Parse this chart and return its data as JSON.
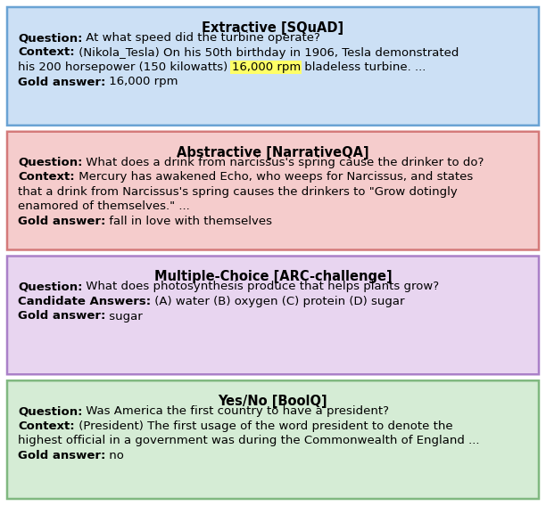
{
  "boxes": [
    {
      "title": "Extractive [SQuAD]",
      "bg_color": "#cce0f5",
      "border_color": "#6aa3d4",
      "lines": [
        [
          {
            "text": "Question:",
            "bold": true
          },
          {
            "text": " At what speed did the turbine operate?",
            "bold": false
          }
        ],
        [
          {
            "text": "Context:",
            "bold": true
          },
          {
            "text": " (Nikola_Tesla) On his 50th birthday in 1906, Tesla demonstrated",
            "bold": false
          }
        ],
        [
          {
            "text": "his 200 horsepower (150 kilowatts) ",
            "bold": false
          },
          {
            "text": "16,000 rpm",
            "bold": false,
            "highlight": "#ffff66"
          },
          {
            "text": " bladeless turbine. ...",
            "bold": false
          }
        ],
        [
          {
            "text": "Gold answer:",
            "bold": true
          },
          {
            "text": " 16,000 rpm",
            "bold": false
          }
        ]
      ]
    },
    {
      "title": "Abstractive [NarrativeQA]",
      "bg_color": "#f5cccc",
      "border_color": "#d47a7a",
      "lines": [
        [
          {
            "text": "Question:",
            "bold": true
          },
          {
            "text": " What does a drink from narcissus's spring cause the drinker to do?",
            "bold": false
          }
        ],
        [
          {
            "text": "Context:",
            "bold": true
          },
          {
            "text": " Mercury has awakened Echo, who weeps for Narcissus, and states",
            "bold": false
          }
        ],
        [
          {
            "text": "that a drink from Narcissus's spring causes the drinkers to \"Grow dotingly",
            "bold": false
          }
        ],
        [
          {
            "text": "enamored of themselves.\" ...",
            "bold": false
          }
        ],
        [
          {
            "text": "Gold answer:",
            "bold": true
          },
          {
            "text": " fall in love with themselves",
            "bold": false
          }
        ]
      ]
    },
    {
      "title": "Multiple-Choice [ARC-challenge]",
      "bg_color": "#e8d5f0",
      "border_color": "#aa80c8",
      "lines": [
        [
          {
            "text": "Question:",
            "bold": true
          },
          {
            "text": " What does photosynthesis produce that helps plants grow?",
            "bold": false
          }
        ],
        [
          {
            "text": "Candidate Answers:",
            "bold": true
          },
          {
            "text": " (A) water (B) oxygen (C) protein (D) sugar",
            "bold": false
          }
        ],
        [
          {
            "text": "Gold answer:",
            "bold": true
          },
          {
            "text": " sugar",
            "bold": false
          }
        ]
      ]
    },
    {
      "title": "Yes/No [BoolQ]",
      "bg_color": "#d5ecd5",
      "border_color": "#80b880",
      "lines": [
        [
          {
            "text": "Question:",
            "bold": true
          },
          {
            "text": " Was America the first country to have a president?",
            "bold": false
          }
        ],
        [
          {
            "text": "Context:",
            "bold": true
          },
          {
            "text": " (President) The first usage of the word president to denote the",
            "bold": false
          }
        ],
        [
          {
            "text": "highest official in a government was during the Commonwealth of England ...",
            "bold": false
          }
        ],
        [
          {
            "text": "Gold answer:",
            "bold": true
          },
          {
            "text": " no",
            "bold": false
          }
        ]
      ]
    }
  ],
  "figure_bg": "#ffffff",
  "font_size": 9.5,
  "title_font_size": 10.5,
  "fig_width": 6.12,
  "fig_height": 5.68,
  "dpi": 100
}
